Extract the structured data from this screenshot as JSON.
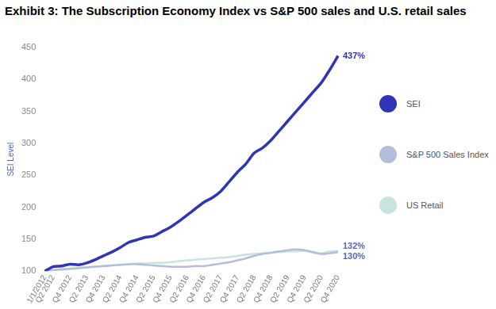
{
  "chart_data": {
    "type": "line",
    "title": "Exhibit 3: The Subscription Economy Index vs S&P 500 sales and U.S. retail sales",
    "ylabel": "SEI Level",
    "categories": [
      "1/1/2012",
      "Q2 2012",
      null,
      "Q4 2012",
      null,
      "Q2 2013",
      null,
      "Q4 2013",
      null,
      "Q2 2014",
      null,
      "Q4 2014",
      null,
      "Q2 2015",
      null,
      "Q4 2015",
      null,
      "Q2 2016",
      null,
      "Q4 2016",
      null,
      "Q2 2017",
      null,
      "Q4 2017",
      null,
      "Q2 2018",
      null,
      "Q4 2018",
      null,
      "Q2 2019",
      null,
      "Q4 2019",
      null,
      "Q2 2020",
      null,
      "Q4 2020"
    ],
    "series": [
      {
        "name": "SEI",
        "color": "#2f35b5",
        "values": [
          100,
          107,
          108,
          111,
          110,
          113,
          118,
          124,
          130,
          137,
          145,
          149,
          153,
          155,
          162,
          169,
          178,
          188,
          198,
          208,
          215,
          225,
          240,
          255,
          268,
          285,
          293,
          305,
          320,
          335,
          350,
          365,
          380,
          395,
          415,
          437
        ]
      },
      {
        "name": "S&P 500 Sales Index",
        "color": "#b3bedb",
        "values": [
          100,
          102,
          103,
          104,
          105,
          106,
          107,
          108,
          109,
          110,
          111,
          111,
          110,
          109,
          108,
          107,
          107,
          107,
          108,
          108,
          110,
          112,
          114,
          117,
          120,
          124,
          127,
          129,
          131,
          133,
          134,
          133,
          130,
          127,
          128,
          130
        ]
      },
      {
        "name": "US Retail",
        "color": "#c8e4de",
        "values": [
          100,
          101,
          102,
          103,
          104,
          106,
          107,
          108,
          109,
          110,
          111,
          112,
          112,
          113,
          113,
          114,
          116,
          117,
          118,
          119,
          120,
          121,
          122,
          124,
          126,
          127,
          128,
          129,
          130,
          131,
          131,
          132,
          129,
          128,
          131,
          132
        ]
      }
    ],
    "annotations": [
      {
        "text": "437%",
        "series": "SEI"
      },
      {
        "text": "132%",
        "series": "US Retail"
      },
      {
        "text": "130%",
        "series": "S&P 500 Sales Index"
      }
    ],
    "ylim": [
      100,
      450
    ],
    "yticks": [
      100,
      150,
      200,
      250,
      300,
      350,
      400,
      450
    ],
    "grid": false,
    "legend": "right"
  }
}
